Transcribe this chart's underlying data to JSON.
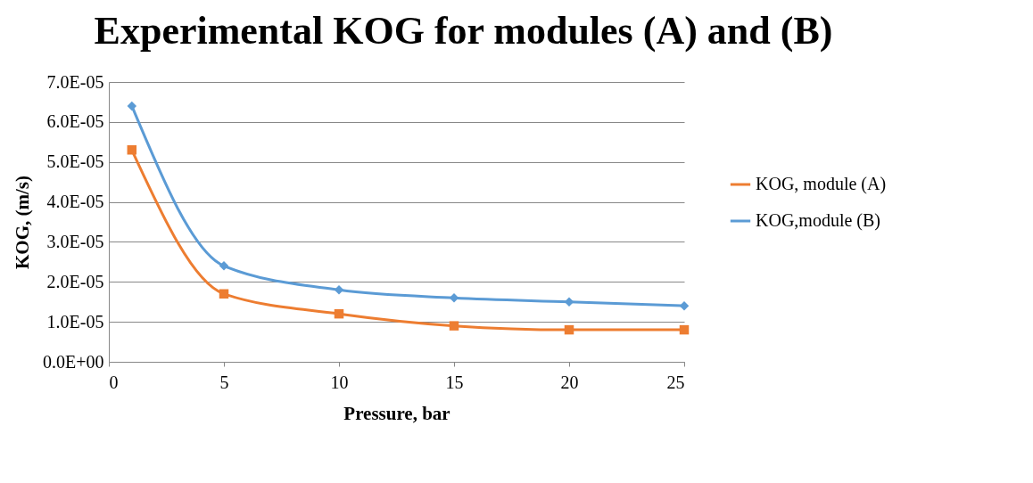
{
  "chart_data": {
    "type": "line",
    "title": "Experimental KOG for modules (A) and (B)",
    "xlabel": "Pressure, bar",
    "ylabel": "KOG, (m/s)",
    "x": [
      1,
      5,
      10,
      15,
      20,
      25
    ],
    "series": [
      {
        "name": "KOG, module (A)",
        "color": "#ed7d31",
        "marker": "square",
        "values": [
          5.3e-05,
          1.7e-05,
          1.2e-05,
          9e-06,
          8e-06,
          8e-06
        ]
      },
      {
        "name": "KOG,module (B)",
        "color": "#5b9bd5",
        "marker": "diamond",
        "values": [
          6.4e-05,
          2.4e-05,
          1.8e-05,
          1.6e-05,
          1.5e-05,
          1.4e-05
        ]
      }
    ],
    "xlim": [
      0,
      25
    ],
    "xticks": [
      0,
      5,
      10,
      15,
      20,
      25
    ],
    "ylim": [
      0,
      7e-05
    ],
    "yticks": [
      {
        "value": 0,
        "label": "0.0E+00"
      },
      {
        "value": 1e-05,
        "label": "1.0E-05"
      },
      {
        "value": 2e-05,
        "label": "2.0E-05"
      },
      {
        "value": 3e-05,
        "label": "3.0E-05"
      },
      {
        "value": 4e-05,
        "label": "4.0E-05"
      },
      {
        "value": 5e-05,
        "label": "5.0E-05"
      },
      {
        "value": 6e-05,
        "label": "6.0E-05"
      },
      {
        "value": 7e-05,
        "label": "7.0E-05"
      }
    ],
    "grid": "y",
    "legend": "right",
    "line_style": "solid"
  }
}
